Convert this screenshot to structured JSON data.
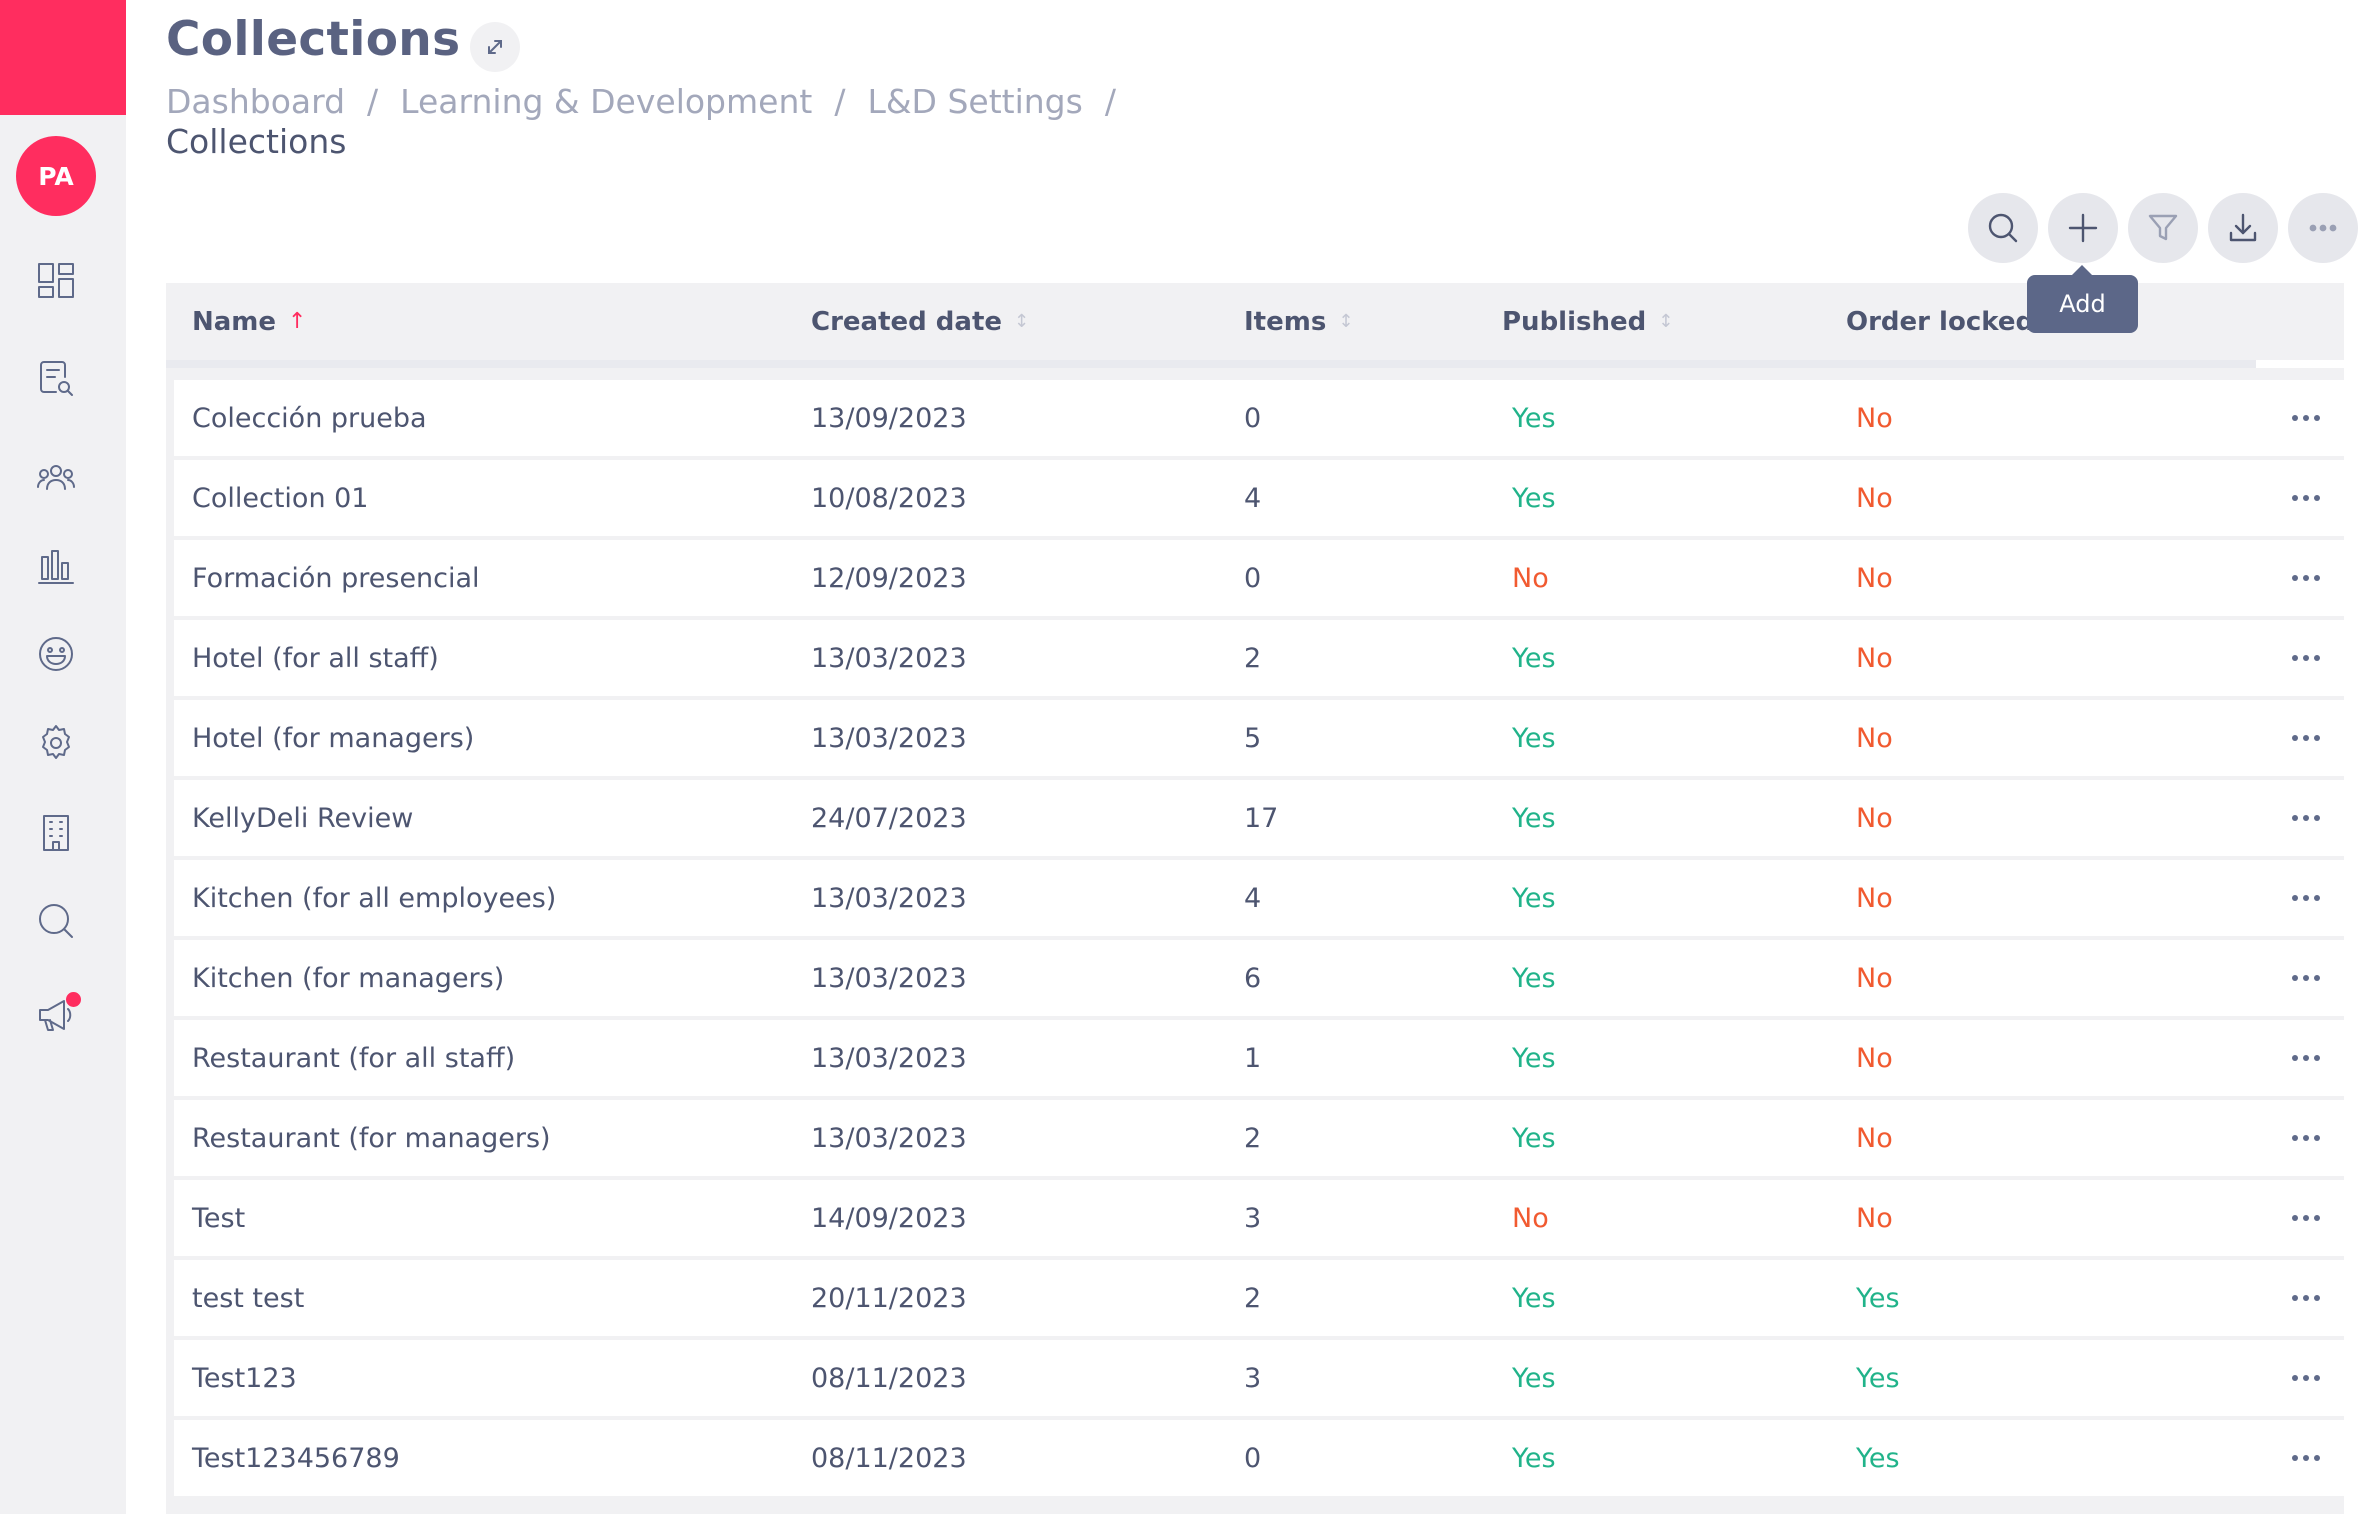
{
  "colors": {
    "brand": "#ff2d5f",
    "yes": "#21b38a",
    "no": "#f15a30",
    "tooltip": "#5c6788"
  },
  "sidebar": {
    "avatar_initials": "PA",
    "items": [
      {
        "icon": "dashboard-icon"
      },
      {
        "icon": "document-search-icon"
      },
      {
        "icon": "people-icon"
      },
      {
        "icon": "analytics-icon"
      },
      {
        "icon": "smiley-icon"
      },
      {
        "icon": "settings-gear-icon"
      },
      {
        "icon": "building-icon"
      },
      {
        "icon": "search-icon"
      },
      {
        "icon": "megaphone-icon",
        "has_notification": true
      }
    ]
  },
  "header": {
    "title": "Collections",
    "breadcrumb": [
      "Dashboard",
      "Learning & Development",
      "L&D Settings"
    ],
    "breadcrumb_separator": "/",
    "current": "Collections"
  },
  "toolbar": {
    "buttons": [
      "search-icon",
      "plus-icon",
      "filter-icon",
      "download-icon",
      "more-icon"
    ],
    "tooltip": "Add"
  },
  "table": {
    "columns": {
      "name": "Name",
      "created_date": "Created date",
      "items": "Items",
      "published": "Published",
      "order_locked": "Order locked"
    },
    "rows": [
      {
        "name": "Colección prueba",
        "created_date": "13/09/2023",
        "items": "0",
        "published": "Yes",
        "order_locked": "No"
      },
      {
        "name": "Collection 01",
        "created_date": "10/08/2023",
        "items": "4",
        "published": "Yes",
        "order_locked": "No"
      },
      {
        "name": "Formación presencial",
        "created_date": "12/09/2023",
        "items": "0",
        "published": "No",
        "order_locked": "No"
      },
      {
        "name": "Hotel (for all staff)",
        "created_date": "13/03/2023",
        "items": "2",
        "published": "Yes",
        "order_locked": "No"
      },
      {
        "name": "Hotel (for managers)",
        "created_date": "13/03/2023",
        "items": "5",
        "published": "Yes",
        "order_locked": "No"
      },
      {
        "name": "KellyDeli Review",
        "created_date": "24/07/2023",
        "items": "17",
        "published": "Yes",
        "order_locked": "No"
      },
      {
        "name": "Kitchen (for all employees)",
        "created_date": "13/03/2023",
        "items": "4",
        "published": "Yes",
        "order_locked": "No"
      },
      {
        "name": "Kitchen (for managers)",
        "created_date": "13/03/2023",
        "items": "6",
        "published": "Yes",
        "order_locked": "No"
      },
      {
        "name": "Restaurant (for all staff)",
        "created_date": "13/03/2023",
        "items": "1",
        "published": "Yes",
        "order_locked": "No"
      },
      {
        "name": "Restaurant (for managers)",
        "created_date": "13/03/2023",
        "items": "2",
        "published": "Yes",
        "order_locked": "No"
      },
      {
        "name": "Test",
        "created_date": "14/09/2023",
        "items": "3",
        "published": "No",
        "order_locked": "No"
      },
      {
        "name": "test test",
        "created_date": "20/11/2023",
        "items": "2",
        "published": "Yes",
        "order_locked": "Yes"
      },
      {
        "name": "Test123",
        "created_date": "08/11/2023",
        "items": "3",
        "published": "Yes",
        "order_locked": "Yes"
      },
      {
        "name": "Test123456789",
        "created_date": "08/11/2023",
        "items": "0",
        "published": "Yes",
        "order_locked": "Yes"
      }
    ]
  }
}
